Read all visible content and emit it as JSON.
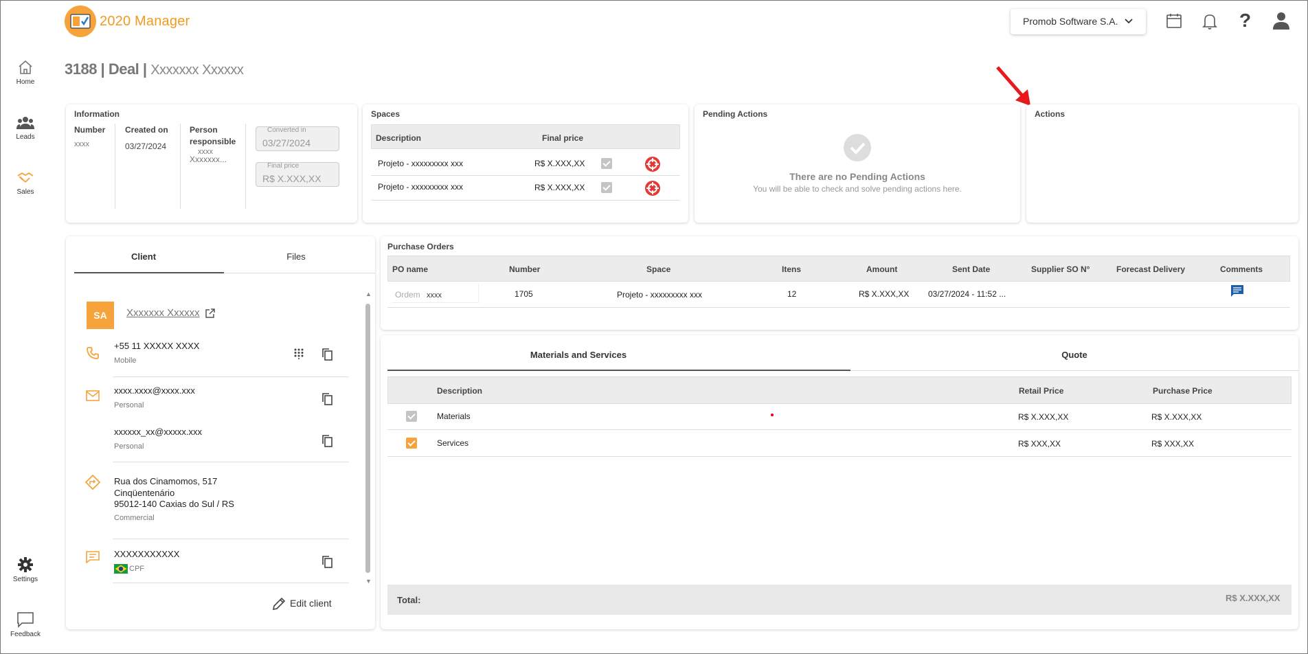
{
  "app": {
    "name": "2020 Manager",
    "company": "Promob Software S.A."
  },
  "sidebar": {
    "items": [
      {
        "label": "Home",
        "icon": "home-icon"
      },
      {
        "label": "Leads",
        "icon": "people-icon"
      },
      {
        "label": "Sales",
        "icon": "handshake-icon"
      },
      {
        "label": "Settings",
        "icon": "gear-icon"
      },
      {
        "label": "Feedback",
        "icon": "chat-bubble-icon"
      }
    ]
  },
  "page": {
    "title": "3188 | Deal |",
    "subtitle": "Xxxxxxx Xxxxxx"
  },
  "info": {
    "title": "Information",
    "number_label": "Number",
    "number_value": "xxxx",
    "created_label": "Created on",
    "created_value": "03/27/2024",
    "person_label": "Person responsible",
    "person_value_1": "xxxx",
    "person_value_2": "Xxxxxxx...",
    "converted_label": "Converted in",
    "converted_value": "03/27/2024",
    "final_label": "Final price",
    "final_value": "R$ X.XXX,XX"
  },
  "spaces": {
    "title": "Spaces",
    "headers": {
      "description": "Description",
      "final_price": "Final price"
    },
    "rows": [
      {
        "description": "Projeto - xxxxxxxxx xxx",
        "price": "R$ X.XXX,XX"
      },
      {
        "description": "Projeto - xxxxxxxxx xxx",
        "price": "R$ X.XXX,XX"
      }
    ]
  },
  "pending": {
    "title": "Pending Actions",
    "empty_title": "There are no Pending Actions",
    "empty_sub": "You will be able to check and solve pending actions here."
  },
  "actions": {
    "title": "Actions"
  },
  "client_tabs": {
    "client": "Client",
    "files": "Files"
  },
  "client": {
    "initials": "SA",
    "name": "Xxxxxxx Xxxxxx",
    "phone": "+55 11 XXXXX XXXX",
    "phone_type": "Mobile",
    "email1": "xxxx.xxxx@xxxx.xxx",
    "email1_type": "Personal",
    "email2": "xxxxxx_xx@xxxxx.xxx",
    "email2_type": "Personal",
    "address_line1": "Rua dos Cinamomos, 517",
    "address_line2": "Cinqüentenário",
    "address_line3": "95012-140 Caxias do Sul / RS",
    "address_type": "Commercial",
    "doc": "XXXXXXXXXXX",
    "doc_type": "CPF",
    "edit_label": "Edit client"
  },
  "purchase_orders": {
    "title": "Purchase Orders",
    "headers": [
      "PO name",
      "Number",
      "Space",
      "Itens",
      "Amount",
      "Sent Date",
      "Supplier SO N°",
      "Forecast Delivery",
      "Comments"
    ],
    "row": {
      "po_placeholder": "Ordem",
      "po_value": "xxxx",
      "number": "1705",
      "space": "Projeto - xxxxxxxxx xxx",
      "itens": "12",
      "amount": "R$ X.XXX,XX",
      "sent_date": "03/27/2024 - 11:52 ..."
    }
  },
  "mat_tabs": {
    "materials": "Materials and Services",
    "quote": "Quote"
  },
  "materials": {
    "headers": {
      "description": "Description",
      "retail": "Retail Price",
      "purchase": "Purchase Price"
    },
    "rows": [
      {
        "description": "Materials",
        "retail": "R$ X.XXX,XX",
        "purchase": "R$ X.XXX,XX"
      },
      {
        "description": "Services",
        "retail": "R$ XXX,XX",
        "purchase": "R$ XXX,XX"
      }
    ],
    "total_label": "Total:",
    "total_value": "R$ X.XXX,XX"
  },
  "colors": {
    "accent": "#f5a33a",
    "delete": "#e53935",
    "comment": "#1f5fa8",
    "arrow": "#e8191c"
  }
}
